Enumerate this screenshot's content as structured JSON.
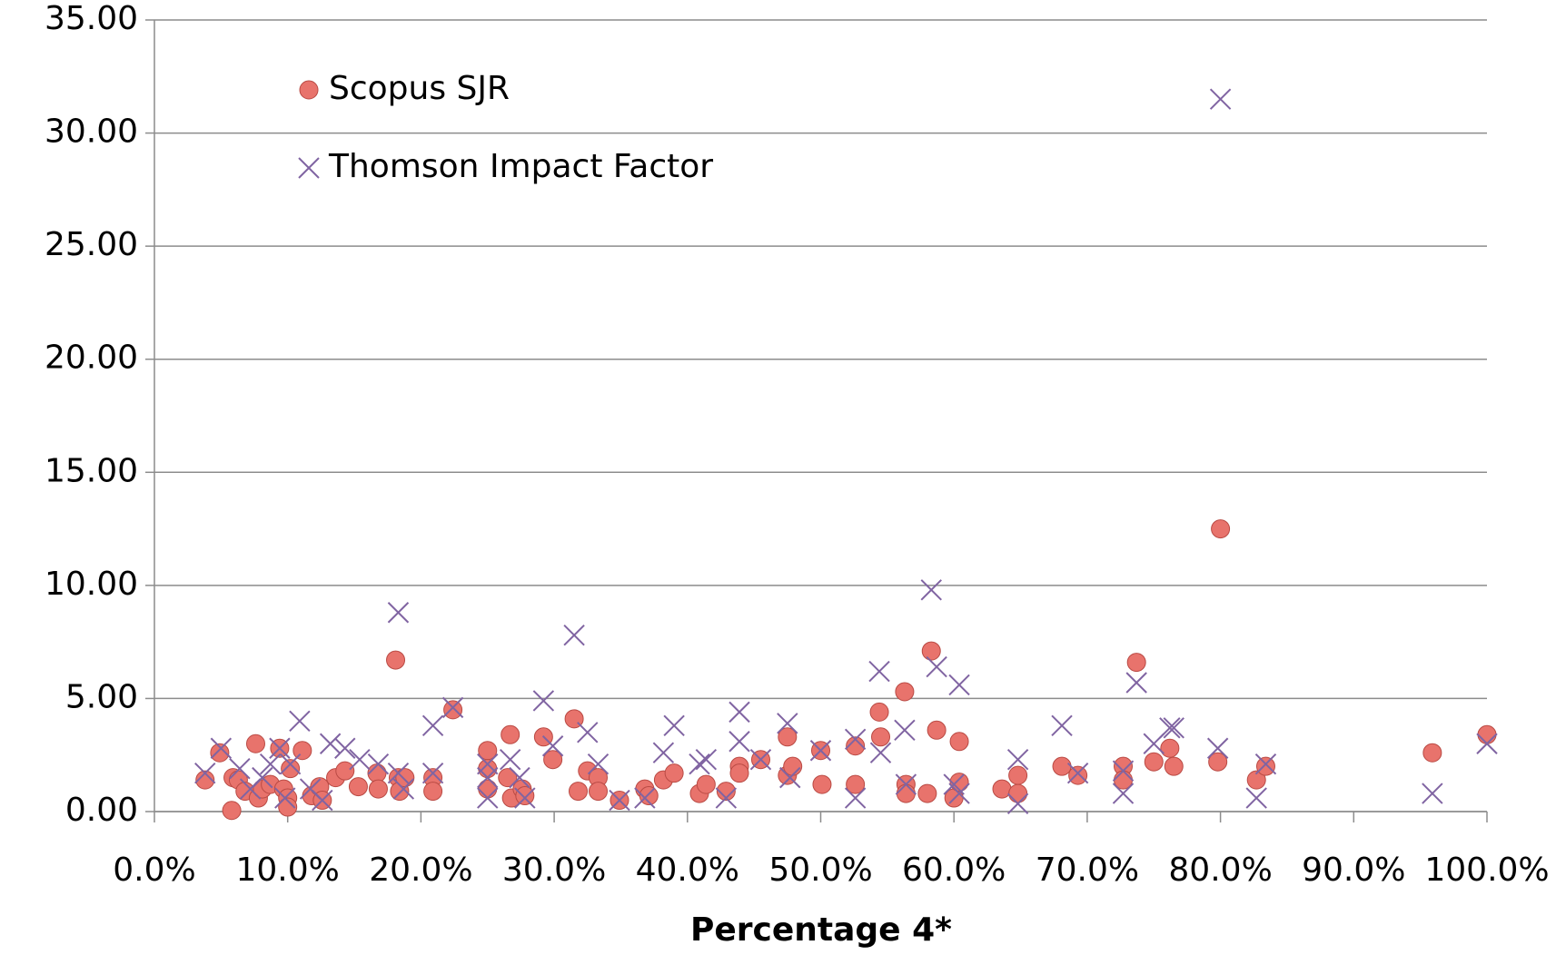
{
  "chart_data": {
    "type": "scatter",
    "x_label": "Percentage 4*",
    "grid": true,
    "legend": "upper left",
    "xlim": [
      0,
      100
    ],
    "ylim": [
      0,
      35
    ],
    "xticks": [
      {
        "value": 0,
        "label": "0.0%"
      },
      {
        "value": 10,
        "label": "10.0%"
      },
      {
        "value": 20,
        "label": "20.0%"
      },
      {
        "value": 30,
        "label": "30.0%"
      },
      {
        "value": 40,
        "label": "40.0%"
      },
      {
        "value": 50,
        "label": "50.0%"
      },
      {
        "value": 60,
        "label": "60.0%"
      },
      {
        "value": 70,
        "label": "70.0%"
      },
      {
        "value": 80,
        "label": "80.0%"
      },
      {
        "value": 90,
        "label": "90.0%"
      },
      {
        "value": 100,
        "label": "100.0%"
      }
    ],
    "yticks": [
      {
        "value": 0,
        "label": "0.00"
      },
      {
        "value": 5,
        "label": "5.00"
      },
      {
        "value": 10,
        "label": "10.00"
      },
      {
        "value": 15,
        "label": "15.00"
      },
      {
        "value": 20,
        "label": "20.00"
      },
      {
        "value": 25,
        "label": "25.00"
      },
      {
        "value": 30,
        "label": "30.00"
      },
      {
        "value": 35,
        "label": "35.00"
      }
    ],
    "series": [
      {
        "name": "Scopus SJR",
        "color": "#e8736c",
        "marker": "circle",
        "x": [
          3.8,
          4.9,
          5.8,
          5.9,
          6.3,
          6.8,
          7.6,
          7.8,
          8.1,
          8.7,
          9.4,
          9.7,
          10.0,
          10.0,
          10.2,
          11.1,
          11.8,
          12.4,
          12.6,
          13.6,
          14.3,
          15.3,
          16.7,
          16.8,
          18.1,
          18.3,
          18.4,
          18.8,
          20.9,
          20.9,
          22.4,
          25.0,
          25.0,
          25.0,
          26.5,
          26.7,
          26.8,
          27.6,
          27.8,
          29.2,
          29.9,
          31.5,
          31.8,
          32.5,
          33.3,
          33.3,
          34.9,
          36.8,
          37.1,
          38.2,
          39.0,
          40.9,
          41.4,
          42.9,
          43.9,
          43.9,
          45.5,
          47.5,
          47.5,
          47.9,
          50.0,
          50.1,
          52.6,
          52.6,
          54.4,
          54.5,
          56.3,
          56.4,
          56.4,
          58.0,
          58.3,
          58.7,
          60.0,
          60.4,
          60.4,
          63.6,
          64.8,
          64.8,
          68.1,
          69.3,
          72.7,
          72.7,
          73.7,
          75.0,
          76.2,
          76.5,
          79.8,
          80.0,
          82.7,
          83.4,
          95.9,
          100
        ],
        "y": [
          1.4,
          2.6,
          0.05,
          1.5,
          1.4,
          0.9,
          3.0,
          0.6,
          1.0,
          1.2,
          2.8,
          1.0,
          0.6,
          0.2,
          1.9,
          2.7,
          0.7,
          1.1,
          0.5,
          1.5,
          1.8,
          1.1,
          1.7,
          1.0,
          6.7,
          1.5,
          0.9,
          1.5,
          1.5,
          0.9,
          4.5,
          2.7,
          1.9,
          1.0,
          1.5,
          3.4,
          0.6,
          1.0,
          0.7,
          3.3,
          2.3,
          4.1,
          0.9,
          1.8,
          1.5,
          0.9,
          0.5,
          1.0,
          0.7,
          1.4,
          1.7,
          0.8,
          1.2,
          0.9,
          2.0,
          1.7,
          2.3,
          3.3,
          1.6,
          2.0,
          2.7,
          1.2,
          2.9,
          1.2,
          4.4,
          3.3,
          5.3,
          1.2,
          0.8,
          0.8,
          7.1,
          3.6,
          0.6,
          3.1,
          1.3,
          1.0,
          1.6,
          0.8,
          2.0,
          1.6,
          2.0,
          1.4,
          6.6,
          2.2,
          2.8,
          2.0,
          2.2,
          12.5,
          1.4,
          2.0,
          2.6,
          3.4
        ]
      },
      {
        "name": "Thomson Impact Factor",
        "color": "#8064a2",
        "marker": "x",
        "x": [
          3.8,
          5.0,
          6.4,
          7.2,
          8.1,
          8.7,
          9.4,
          9.8,
          10.2,
          10.9,
          11.7,
          12.6,
          13.2,
          14.3,
          15.4,
          16.8,
          18.3,
          18.3,
          18.7,
          20.9,
          20.9,
          22.4,
          25.0,
          25.0,
          25.0,
          26.7,
          27.4,
          27.8,
          29.2,
          29.9,
          31.5,
          32.5,
          33.3,
          34.9,
          36.8,
          38.2,
          39.0,
          40.9,
          41.4,
          42.9,
          43.9,
          43.9,
          45.5,
          47.5,
          47.7,
          50.0,
          52.6,
          52.6,
          54.4,
          54.5,
          56.3,
          56.4,
          58.3,
          58.7,
          60.0,
          60.4,
          60.4,
          64.8,
          64.8,
          68.1,
          69.3,
          72.7,
          72.7,
          73.7,
          75.0,
          76.2,
          76.5,
          79.8,
          80.0,
          82.7,
          83.4,
          95.9,
          100
        ],
        "y": [
          1.7,
          2.8,
          1.9,
          1.0,
          1.5,
          2.1,
          2.8,
          0.6,
          2.1,
          4.0,
          1.0,
          0.5,
          3.0,
          2.8,
          2.3,
          2.1,
          8.8,
          1.7,
          1.0,
          3.8,
          1.7,
          4.6,
          2.1,
          1.5,
          0.6,
          2.3,
          1.5,
          0.6,
          4.9,
          2.9,
          7.8,
          3.5,
          2.1,
          0.5,
          0.6,
          2.6,
          3.8,
          2.1,
          2.3,
          0.6,
          4.4,
          3.1,
          2.3,
          3.9,
          1.5,
          2.7,
          3.2,
          0.6,
          6.2,
          2.6,
          3.6,
          1.2,
          9.8,
          6.4,
          1.2,
          5.6,
          0.8,
          2.3,
          0.35,
          3.8,
          1.7,
          0.8,
          1.8,
          5.7,
          3.0,
          3.7,
          3.7,
          2.8,
          31.5,
          0.6,
          2.1,
          0.8,
          3.0
        ]
      }
    ]
  }
}
